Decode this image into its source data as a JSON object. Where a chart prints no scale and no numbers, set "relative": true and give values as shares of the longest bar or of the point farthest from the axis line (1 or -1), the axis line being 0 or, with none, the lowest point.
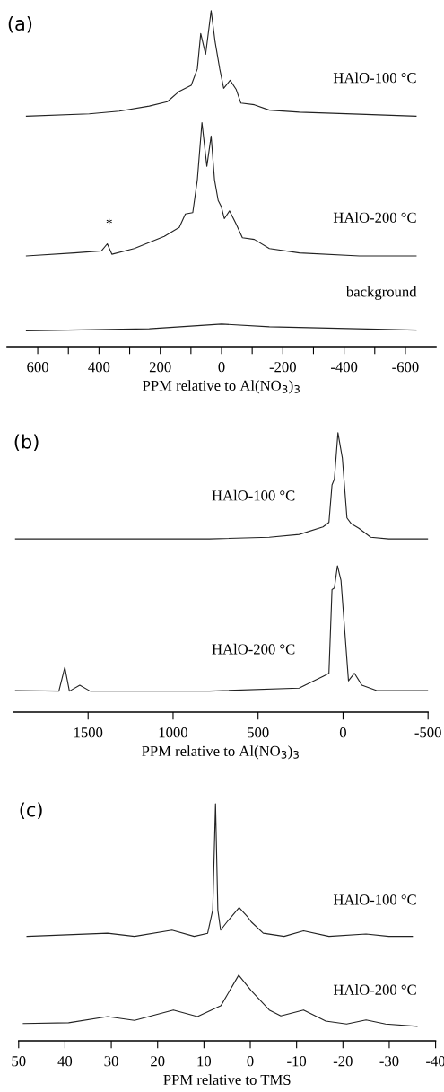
{
  "chart_data": [
    {
      "type": "line",
      "title": "(a)",
      "xlabel": "PPM relative to Al(NO$_{3}$)$_{3}$",
      "relative": true,
      "xlim": [
        700,
        -700
      ],
      "xticks": [
        600,
        {
          "value": 500,
          "label": null
        },
        400,
        {
          "value": 300,
          "label": null
        },
        200,
        {
          "value": 100,
          "label": null
        },
        0,
        {
          "value": -100,
          "label": null
        },
        -200,
        {
          "value": -300,
          "label": null
        },
        -400,
        {
          "value": -500,
          "label": null
        },
        -600
      ],
      "annotations": [
        "*"
      ],
      "series": [
        {
          "name": "HAlO-100 °C",
          "color": "#222222",
          "x": [
            637,
            432,
            334,
            236,
            177,
            138,
            99,
            79,
            68,
            52,
            34,
            21,
            6,
            -7,
            -28,
            -48,
            -63,
            -107,
            -156,
            -254,
            -450,
            -635
          ],
          "values": [
            0.686,
            0.693,
            0.701,
            0.716,
            0.729,
            0.76,
            0.778,
            0.827,
            0.932,
            0.87,
            1.0,
            0.907,
            0.827,
            0.769,
            0.793,
            0.765,
            0.725,
            0.72,
            0.704,
            0.698,
            0.692,
            0.686
          ]
        },
        {
          "name": "HAlO-200 °C",
          "color": "#222222",
          "x": [
            637,
            481,
            392,
            373,
            358,
            285,
            187,
            138,
            118,
            94,
            79,
            64,
            48,
            34,
            23,
            11,
            1,
            -9,
            -26,
            -48,
            -68,
            -107,
            -156,
            -254,
            -450,
            -635
          ],
          "values": [
            0.27,
            0.279,
            0.285,
            0.306,
            0.275,
            0.292,
            0.328,
            0.355,
            0.395,
            0.399,
            0.497,
            0.667,
            0.537,
            0.627,
            0.497,
            0.435,
            0.417,
            0.381,
            0.404,
            0.364,
            0.324,
            0.319,
            0.292,
            0.279,
            0.27,
            0.27
          ]
        },
        {
          "name": "background",
          "color": "#222222",
          "x": [
            637,
            236,
            0,
            -156,
            -635
          ],
          "values": [
            0.047,
            0.053,
            0.067,
            0.059,
            0.049
          ]
        }
      ]
    },
    {
      "type": "line",
      "title": "(b)",
      "xlabel": "PPM relative to Al(NO$_{3}$)$_{3}$",
      "relative": true,
      "xlim": [
        1940,
        -500
      ],
      "xticks": [
        1500,
        1000,
        500,
        0,
        -500
      ],
      "series": [
        {
          "name": "HAlO-100 °C",
          "color": "#222222",
          "x": [
            1927,
            1312,
            785,
            434,
            258,
            118,
            83,
            65,
            51,
            30,
            4,
            -23,
            -49,
            -93,
            -163,
            -269,
            -497
          ],
          "values": [
            0.62,
            0.62,
            0.62,
            0.626,
            0.636,
            0.663,
            0.679,
            0.813,
            0.834,
            1.0,
            0.909,
            0.695,
            0.674,
            0.658,
            0.626,
            0.62,
            0.62
          ]
        },
        {
          "name": "HAlO-200 °C",
          "color": "#222222",
          "x": [
            1927,
            1672,
            1637,
            1610,
            1549,
            1488,
            785,
            258,
            118,
            83,
            65,
            51,
            33,
            12,
            -32,
            -67,
            -111,
            -198,
            -497
          ],
          "values": [
            0.077,
            0.075,
            0.16,
            0.075,
            0.096,
            0.075,
            0.075,
            0.086,
            0.128,
            0.139,
            0.439,
            0.444,
            0.524,
            0.471,
            0.112,
            0.139,
            0.096,
            0.077,
            0.077
          ]
        }
      ]
    },
    {
      "type": "line",
      "title": "(c)",
      "xlabel": "PPM relative to TMS",
      "relative": true,
      "xlim": [
        50,
        -40
      ],
      "xticks": [
        50,
        40,
        30,
        20,
        10,
        0,
        -10,
        -20,
        -30,
        -40
      ],
      "series": [
        {
          "name": "HAlO-100 °C",
          "color": "#222222",
          "x": [
            48.2,
            30.8,
            25.0,
            16.9,
            12.1,
            9.2,
            8.1,
            7.5,
            7.0,
            6.4,
            5.0,
            2.4,
            0.5,
            -0.2,
            -2.8,
            -7.3,
            -11.5,
            -17.0,
            -25.0,
            -29.9,
            -35.0
          ],
          "values": [
            0.441,
            0.454,
            0.441,
            0.467,
            0.441,
            0.454,
            0.552,
            1.0,
            0.552,
            0.467,
            0.502,
            0.562,
            0.521,
            0.502,
            0.454,
            0.441,
            0.464,
            0.441,
            0.451,
            0.441,
            0.441
          ]
        },
        {
          "name": "HAlO-200 °C",
          "color": "#222222",
          "x": [
            49.0,
            39.2,
            30.8,
            25.0,
            16.6,
            11.4,
            6.3,
            2.5,
            -0.2,
            -4.1,
            -6.6,
            -11.5,
            -16.3,
            -20.8,
            -25.0,
            -29.2,
            -36.0
          ],
          "values": [
            0.073,
            0.076,
            0.102,
            0.086,
            0.13,
            0.102,
            0.149,
            0.277,
            0.212,
            0.13,
            0.105,
            0.13,
            0.083,
            0.071,
            0.088,
            0.071,
            0.061
          ]
        }
      ]
    }
  ]
}
